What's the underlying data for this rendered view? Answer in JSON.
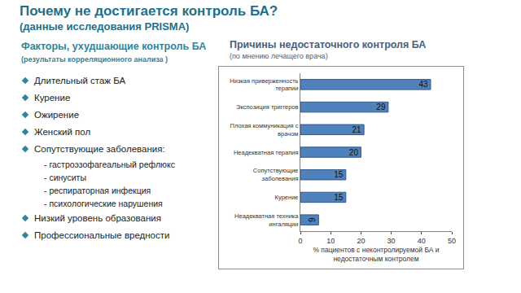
{
  "header": {
    "title": "Почему не достигается контроль БА?",
    "subtitle": "(данные исследования PRISMA)"
  },
  "factors": {
    "title": "Факторы, ухудшающие контроль БА",
    "note": "(результаты корреляционного анализа )",
    "items": [
      {
        "text": "Длительный стаж БА"
      },
      {
        "text": "Курение"
      },
      {
        "text": "Ожирение"
      },
      {
        "text": "Женский пол"
      },
      {
        "text": "Сопутствующие заболевания:",
        "subitems": [
          "- гастроэзофагеальный рефлюкс",
          "- синуситы",
          "- респираторная инфекция",
          "- психологические нарушения"
        ]
      },
      {
        "text": "Низкий уровень образования"
      },
      {
        "text": "Профессиональные вредности"
      }
    ]
  },
  "chart_data": {
    "type": "bar",
    "orientation": "horizontal",
    "title": "Причины недостаточного контроля БА",
    "subtitle": "(по мнению лечащего врача)",
    "categories": [
      "Низкая приверженность терапии",
      "Экспозиция триггеров",
      "Плохая коммуникация с врачом",
      "Неадекватная терапия",
      "Сопутствующие заболевания",
      "Курение",
      "Неадекватная техника ингаляции"
    ],
    "values": [
      43,
      29,
      21,
      20,
      15,
      15,
      6
    ],
    "color": "#4f81bd",
    "xlabel": "% пациентов с неконтролируемой БА и недостаточным контролем",
    "xlim": [
      0,
      50
    ],
    "xticks": [
      0,
      10,
      20,
      30,
      40,
      50
    ],
    "grid": false,
    "data_labels": true
  }
}
